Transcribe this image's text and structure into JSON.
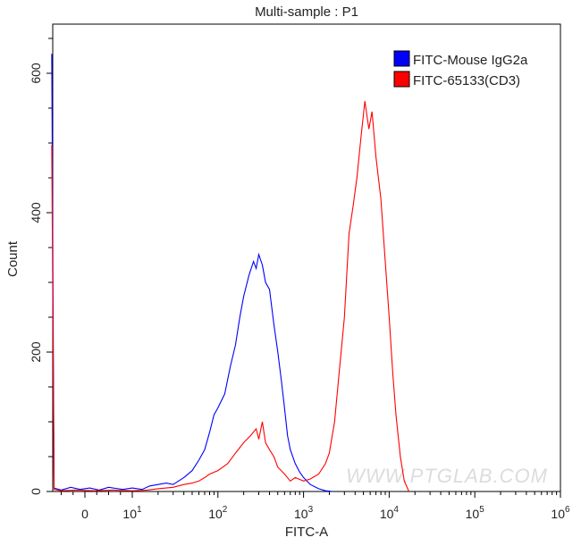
{
  "chart_data": {
    "type": "line",
    "title": "Multi-sample : P1",
    "xlabel": "FITC-A",
    "ylabel": "Count",
    "x_scale": "biexponential",
    "xlim": [
      -7,
      1000000
    ],
    "ylim": [
      0,
      670
    ],
    "x_ticks": [
      {
        "value": 0,
        "label": "0",
        "sup": ""
      },
      {
        "value": 10,
        "label": "10",
        "sup": "1"
      },
      {
        "value": 100,
        "label": "10",
        "sup": "2"
      },
      {
        "value": 1000,
        "label": "10",
        "sup": "3"
      },
      {
        "value": 10000,
        "label": "10",
        "sup": "4"
      },
      {
        "value": 100000,
        "label": "10",
        "sup": "5"
      },
      {
        "value": 1000000,
        "label": "10",
        "sup": "6"
      }
    ],
    "y_ticks": [
      0,
      200,
      400,
      600
    ],
    "grid": false,
    "legend_placement": "top-right",
    "watermark": "WWW.PTGLAB.COM",
    "series": [
      {
        "name": "FITC-Mouse IgG2a",
        "color": "#0000ff",
        "points": [
          [
            -7,
            628
          ],
          [
            -6.5,
            5
          ],
          [
            -5,
            2
          ],
          [
            -3,
            6
          ],
          [
            -1,
            3
          ],
          [
            1,
            5
          ],
          [
            3,
            2
          ],
          [
            5,
            6
          ],
          [
            8,
            3
          ],
          [
            10,
            5
          ],
          [
            13,
            3
          ],
          [
            16,
            8
          ],
          [
            20,
            10
          ],
          [
            25,
            12
          ],
          [
            30,
            10
          ],
          [
            40,
            20
          ],
          [
            50,
            30
          ],
          [
            60,
            45
          ],
          [
            70,
            60
          ],
          [
            80,
            85
          ],
          [
            90,
            110
          ],
          [
            100,
            120
          ],
          [
            120,
            140
          ],
          [
            140,
            180
          ],
          [
            160,
            210
          ],
          [
            180,
            250
          ],
          [
            200,
            280
          ],
          [
            230,
            310
          ],
          [
            260,
            330
          ],
          [
            280,
            320
          ],
          [
            300,
            340
          ],
          [
            330,
            325
          ],
          [
            360,
            300
          ],
          [
            400,
            290
          ],
          [
            450,
            240
          ],
          [
            500,
            200
          ],
          [
            550,
            160
          ],
          [
            600,
            120
          ],
          [
            650,
            80
          ],
          [
            700,
            60
          ],
          [
            800,
            40
          ],
          [
            900,
            28
          ],
          [
            1000,
            20
          ],
          [
            1200,
            10
          ],
          [
            1500,
            4
          ],
          [
            1800,
            1
          ],
          [
            2200,
            0
          ]
        ]
      },
      {
        "name": "FITC-65133(CD3)",
        "color": "#ff0000",
        "points": [
          [
            -7,
            497
          ],
          [
            -6.5,
            3
          ],
          [
            -5,
            1
          ],
          [
            -2,
            2
          ],
          [
            2,
            1
          ],
          [
            6,
            2
          ],
          [
            10,
            1
          ],
          [
            15,
            2
          ],
          [
            20,
            4
          ],
          [
            30,
            6
          ],
          [
            40,
            10
          ],
          [
            50,
            12
          ],
          [
            60,
            15
          ],
          [
            70,
            20
          ],
          [
            80,
            25
          ],
          [
            100,
            30
          ],
          [
            130,
            40
          ],
          [
            160,
            55
          ],
          [
            200,
            70
          ],
          [
            240,
            80
          ],
          [
            280,
            90
          ],
          [
            300,
            75
          ],
          [
            330,
            100
          ],
          [
            360,
            70
          ],
          [
            400,
            60
          ],
          [
            450,
            50
          ],
          [
            500,
            35
          ],
          [
            600,
            25
          ],
          [
            700,
            15
          ],
          [
            800,
            20
          ],
          [
            1000,
            15
          ],
          [
            1200,
            18
          ],
          [
            1500,
            25
          ],
          [
            1800,
            40
          ],
          [
            2000,
            55
          ],
          [
            2300,
            100
          ],
          [
            2600,
            170
          ],
          [
            3000,
            250
          ],
          [
            3400,
            370
          ],
          [
            3800,
            410
          ],
          [
            4200,
            450
          ],
          [
            4700,
            510
          ],
          [
            5200,
            560
          ],
          [
            5800,
            520
          ],
          [
            6300,
            545
          ],
          [
            7000,
            480
          ],
          [
            8000,
            420
          ],
          [
            9000,
            330
          ],
          [
            10000,
            250
          ],
          [
            11000,
            170
          ],
          [
            12000,
            110
          ],
          [
            13500,
            50
          ],
          [
            15000,
            15
          ],
          [
            17000,
            0
          ]
        ]
      }
    ]
  }
}
